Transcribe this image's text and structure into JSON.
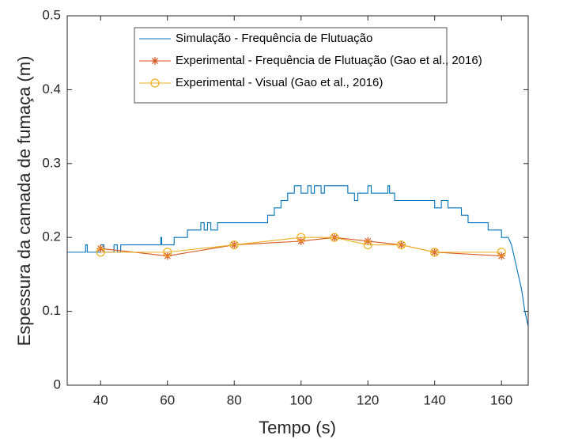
{
  "chart_data": {
    "type": "line",
    "x_label": "Tempo (s)",
    "y_label": "Espessura da camada de fumaça (m)",
    "xlim": [
      30,
      168
    ],
    "ylim": [
      0,
      0.5
    ],
    "xticks": [
      40,
      60,
      80,
      100,
      120,
      140,
      160
    ],
    "yticks": [
      0,
      0.1,
      0.2,
      0.3,
      0.4,
      0.5
    ],
    "legend_position": "northeast",
    "series": [
      {
        "name": "Simulação - Frequência de Flutuação",
        "color": "#0072BD",
        "marker": "none",
        "x": [
          30,
          35.5,
          35.5,
          36,
          36,
          40,
          40,
          41,
          41,
          44,
          44,
          45,
          45,
          46,
          46,
          58,
          58,
          58.3,
          58.3,
          62,
          62,
          66,
          66,
          70,
          70,
          71,
          71,
          72,
          72,
          73,
          73,
          75,
          75,
          90,
          90,
          92,
          92,
          94,
          94,
          96,
          96,
          98,
          98,
          100,
          100,
          102,
          102,
          103,
          103,
          104,
          104,
          106,
          106,
          107,
          107,
          114,
          114,
          116,
          116,
          117,
          117,
          120,
          120,
          121,
          121,
          126,
          126,
          126.5,
          126.5,
          128,
          128,
          140,
          140,
          142,
          142,
          144,
          144,
          148,
          148,
          150,
          150,
          156,
          156,
          160,
          160,
          162,
          163,
          164,
          165,
          166,
          167,
          168
        ],
        "values": [
          0.18,
          0.18,
          0.19,
          0.19,
          0.18,
          0.18,
          0.19,
          0.19,
          0.18,
          0.18,
          0.19,
          0.19,
          0.18,
          0.18,
          0.19,
          0.19,
          0.2,
          0.2,
          0.19,
          0.19,
          0.2,
          0.2,
          0.21,
          0.21,
          0.22,
          0.22,
          0.21,
          0.21,
          0.22,
          0.22,
          0.21,
          0.21,
          0.22,
          0.22,
          0.23,
          0.23,
          0.24,
          0.24,
          0.25,
          0.25,
          0.26,
          0.26,
          0.27,
          0.27,
          0.26,
          0.26,
          0.27,
          0.27,
          0.26,
          0.26,
          0.27,
          0.27,
          0.26,
          0.26,
          0.27,
          0.27,
          0.26,
          0.26,
          0.25,
          0.25,
          0.26,
          0.26,
          0.27,
          0.27,
          0.26,
          0.26,
          0.27,
          0.27,
          0.26,
          0.26,
          0.25,
          0.25,
          0.24,
          0.24,
          0.25,
          0.25,
          0.24,
          0.24,
          0.23,
          0.23,
          0.22,
          0.22,
          0.21,
          0.21,
          0.2,
          0.2,
          0.19,
          0.17,
          0.15,
          0.13,
          0.1,
          0.08
        ]
      },
      {
        "name": "Experimental - Frequência de Flutuação (Gao et al., 2016)",
        "color": "#D95319",
        "marker": "star",
        "x": [
          40,
          60,
          80,
          100,
          110,
          120,
          130,
          140,
          160
        ],
        "values": [
          0.185,
          0.175,
          0.19,
          0.195,
          0.2,
          0.195,
          0.19,
          0.18,
          0.175
        ]
      },
      {
        "name": "Experimental - Visual (Gao et al., 2016)",
        "color": "#EDB120",
        "marker": "circle",
        "x": [
          40,
          60,
          80,
          100,
          110,
          120,
          130,
          140,
          160
        ],
        "values": [
          0.18,
          0.18,
          0.19,
          0.2,
          0.2,
          0.19,
          0.19,
          0.18,
          0.18
        ]
      }
    ]
  }
}
